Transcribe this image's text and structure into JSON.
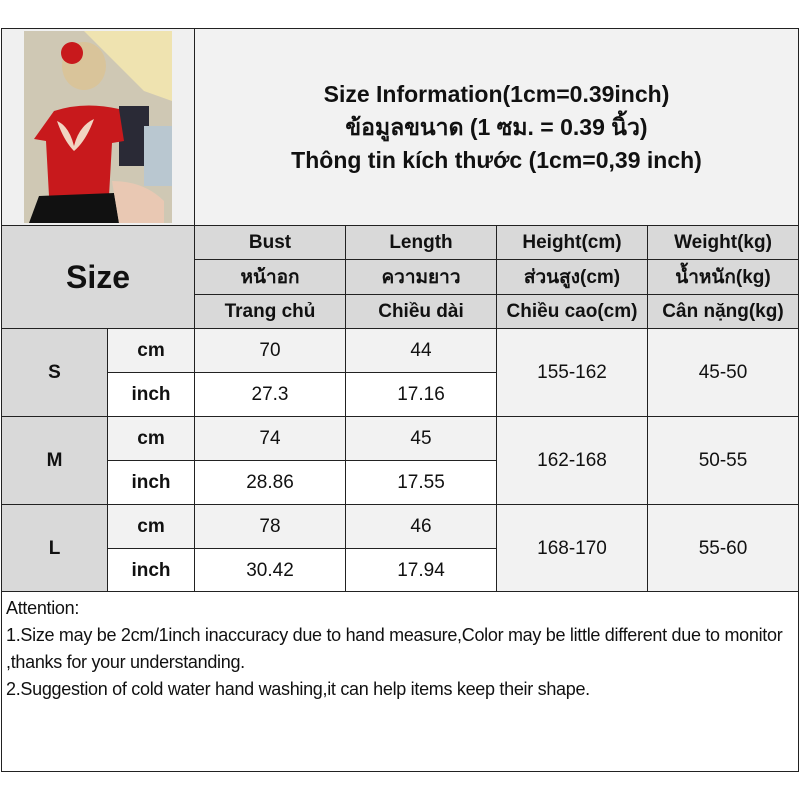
{
  "title": {
    "line1": "Size Information(1cm=0.39inch)",
    "line2": "ข้อมูลขนาด (1 ซม. = 0.39 นิ้ว)",
    "line3": "Thông tin kích thước (1cm=0,39 inch)"
  },
  "photo": {
    "description": "product-photo",
    "shirt_color": "#c8191c"
  },
  "size_label": "Size",
  "columns": [
    {
      "en": "Bust",
      "th": "หน้าอก",
      "vi": "Trang chủ"
    },
    {
      "en": "Length",
      "th": "ความยาว",
      "vi": "Chiều dài"
    },
    {
      "en": "Height(cm)",
      "th": "ส่วนสูง(cm)",
      "vi": "Chiều cao(cm)"
    },
    {
      "en": "Weight(kg)",
      "th": "น้ำหนัก(kg)",
      "vi": "Cân nặng(kg)"
    }
  ],
  "sizes": [
    {
      "size": "S",
      "cm_label": "cm",
      "inch_label": "inch",
      "bust_cm": "70",
      "length_cm": "44",
      "bust_inch": "27.3",
      "length_inch": "17.16",
      "height": "155-162",
      "weight": "45-50"
    },
    {
      "size": "M",
      "cm_label": "cm",
      "inch_label": "inch",
      "bust_cm": "74",
      "length_cm": "45",
      "bust_inch": "28.86",
      "length_inch": "17.55",
      "height": "162-168",
      "weight": "50-55"
    },
    {
      "size": "L",
      "cm_label": "cm",
      "inch_label": "inch",
      "bust_cm": "78",
      "length_cm": "46",
      "bust_inch": "30.42",
      "length_inch": "17.94",
      "height": "168-170",
      "weight": "55-60"
    }
  ],
  "notes": {
    "heading": "Attention:",
    "line1": "1.Size may be 2cm/1inch inaccuracy due to hand measure,Color may be little different due to monitor ,thanks for your understanding.",
    "line2": "2.Suggestion of cold water hand washing,it can help items keep their shape."
  }
}
